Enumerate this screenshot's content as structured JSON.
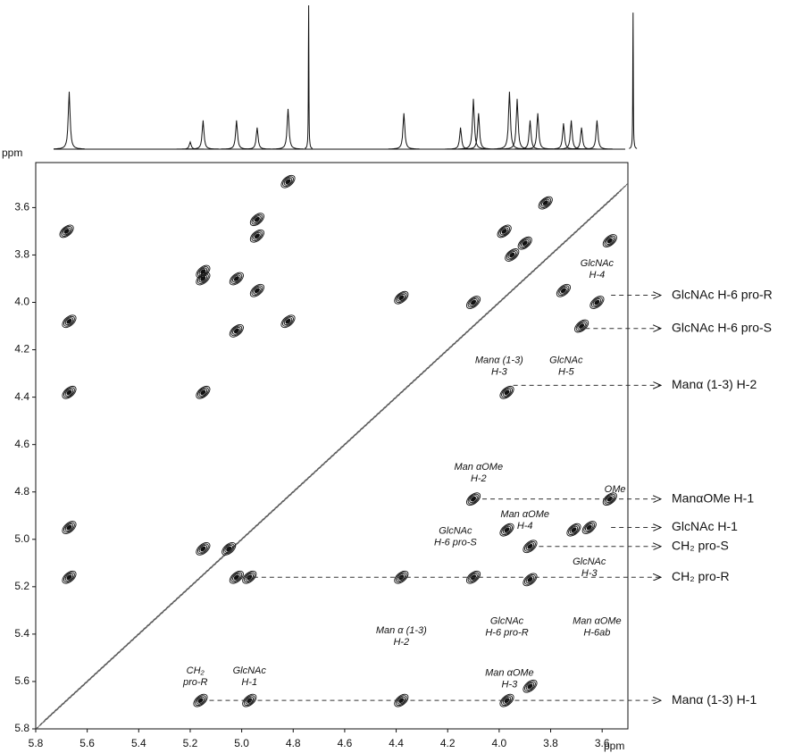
{
  "chart_data": {
    "type": "contour",
    "xlabel": "ppm",
    "ylabel": "ppm",
    "xlim": [
      5.8,
      3.5
    ],
    "ylim": [
      3.41,
      5.8
    ],
    "xticks": [
      5.8,
      5.6,
      5.4,
      5.2,
      {
        "value": 5,
        "label": "5.0"
      },
      4.8,
      4.6,
      4.4,
      4.2,
      {
        "value": 4,
        "label": "4.0"
      },
      3.8,
      3.6
    ],
    "yticks": [
      3.6,
      3.8,
      {
        "value": 4,
        "label": "4.0"
      },
      4.2,
      4.4,
      4.6,
      4.8,
      {
        "value": 5,
        "label": "5.0"
      },
      5.2,
      5.4,
      5.6,
      5.8
    ],
    "color": "#111111",
    "spectrum": {
      "x": [
        5.67,
        5.2,
        5.15,
        5.02,
        4.94,
        4.82,
        4.74,
        4.37,
        4.15,
        4.1,
        4.08,
        3.96,
        3.93,
        3.88,
        3.85,
        3.75,
        3.72,
        3.68,
        3.62,
        3.48
      ],
      "heights": [
        40,
        5,
        20,
        20,
        15,
        28,
        100,
        25,
        15,
        35,
        25,
        40,
        35,
        20,
        25,
        18,
        20,
        15,
        20,
        95
      ]
    },
    "peaks": {
      "x": [
        5.67,
        5.67,
        5.67,
        5.67,
        5.68,
        5.15,
        5.15,
        5.15,
        5.15,
        5.02,
        5.02,
        5.02,
        4.94,
        4.94,
        4.94,
        4.82,
        4.82,
        4.38,
        4.38,
        4.38,
        4.1,
        4.1,
        4.1,
        3.97,
        3.97,
        3.97,
        3.88,
        3.88,
        3.88,
        3.71,
        3.65,
        3.57,
        3.57,
        3.98,
        3.95,
        3.9,
        5.16,
        4.97,
        5.05,
        4.97,
        3.75,
        3.68,
        3.82,
        3.62
      ],
      "y": [
        4.08,
        4.38,
        4.95,
        5.16,
        3.7,
        3.87,
        3.9,
        4.38,
        5.04,
        3.9,
        4.12,
        5.16,
        3.65,
        3.72,
        3.95,
        3.49,
        4.08,
        3.98,
        5.16,
        5.68,
        4.83,
        5.16,
        4.0,
        4.38,
        5.68,
        4.96,
        5.03,
        5.17,
        5.62,
        4.96,
        4.95,
        4.83,
        3.74,
        3.7,
        3.8,
        3.75,
        5.68,
        5.68,
        5.04,
        5.16,
        3.95,
        4.1,
        3.58,
        4.0
      ]
    },
    "annotations": [
      {
        "lines": [
          "GlcNAc",
          "H-4"
        ]
      },
      {
        "lines": [
          "Manα (1-3)",
          "H-3"
        ]
      },
      {
        "lines": [
          "GlcNAc",
          "H-5"
        ]
      },
      {
        "lines": [
          "Man αOMe",
          "H-2"
        ]
      },
      {
        "lines": [
          "OMe"
        ]
      },
      {
        "lines": [
          "GlcNAc",
          "H-6 pro-S"
        ]
      },
      {
        "lines": [
          "Man αOMe",
          "H-4"
        ]
      },
      {
        "lines": [
          "GlcNAc",
          "H-3"
        ]
      },
      {
        "lines": [
          "Man αOMe",
          "H-6ab"
        ]
      },
      {
        "lines": [
          "GlcNAc",
          "H-6 pro-R"
        ]
      },
      {
        "lines": [
          "Man α (1-3)",
          "H-2"
        ]
      },
      {
        "lines": [
          "Man αOMe",
          "H-3"
        ]
      },
      {
        "lines": [
          "CH₂",
          "pro-R"
        ]
      },
      {
        "lines": [
          "GlcNAc",
          "H-1"
        ]
      }
    ],
    "right_labels": [
      "GlcNAc H-6 pro-R",
      "GlcNAc H-6 pro-S",
      "Manα (1-3) H-2",
      "ManαOMe H-1",
      "GlcNAc H-1",
      "CH₂ pro-S",
      "CH₂ pro-R",
      "Manα (1-3) H-1"
    ]
  }
}
